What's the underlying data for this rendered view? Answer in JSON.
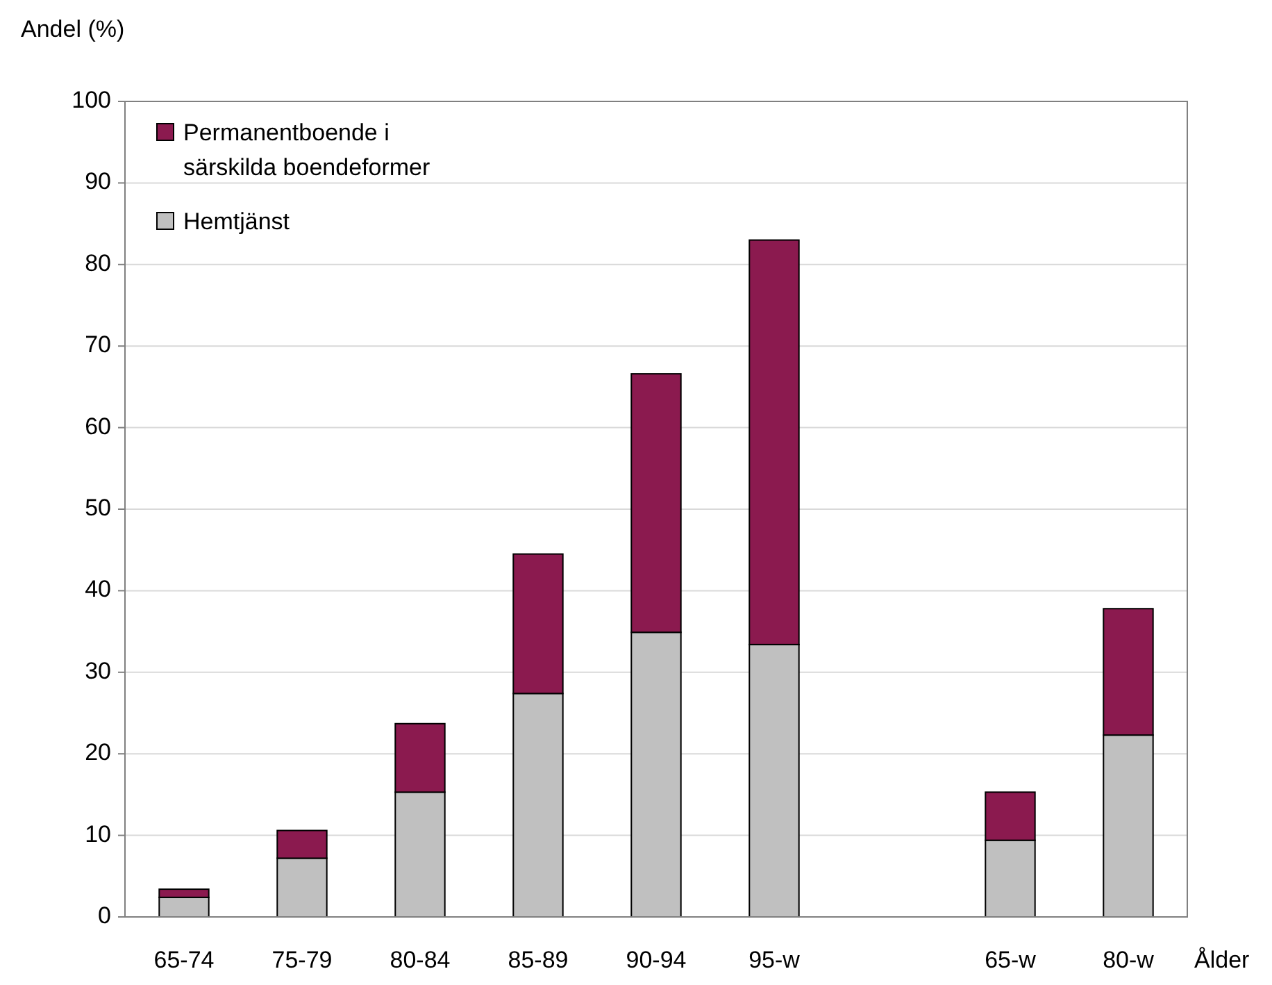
{
  "chart_data": {
    "type": "bar",
    "stacked": true,
    "ylabel": "Andel (%)",
    "xlabel": "Ålder",
    "categories": [
      "65-74",
      "75-79",
      "80-84",
      "85-89",
      "90-94",
      "95-w",
      null,
      "65-w",
      "80-w"
    ],
    "series": [
      {
        "name": "Hemtjänst",
        "color": "#c0c0c0",
        "values": [
          2.4,
          7.2,
          15.3,
          27.4,
          34.9,
          33.4,
          null,
          9.4,
          22.3
        ]
      },
      {
        "name": "Permanentboende i särskilda boendeformer",
        "color": "#8b1a4f",
        "values": [
          1.0,
          3.4,
          8.4,
          17.1,
          31.7,
          49.6,
          null,
          5.9,
          15.5
        ]
      }
    ],
    "ylim": [
      0,
      100
    ],
    "yticks": [
      0,
      10,
      20,
      30,
      40,
      50,
      60,
      70,
      80,
      90,
      100
    ],
    "grid": "y",
    "legend": "top left"
  }
}
